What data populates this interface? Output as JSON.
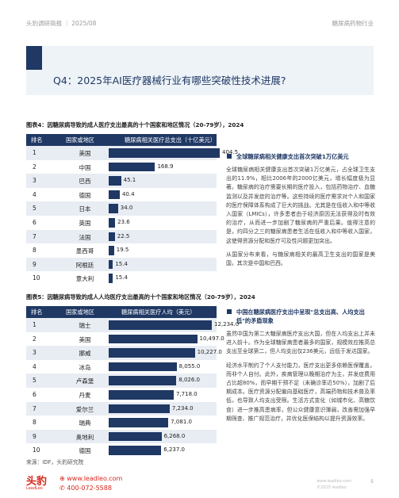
{
  "header": {
    "left": "头豹调研简报 ｜ 2025/08",
    "right": "糖尿病药物行业"
  },
  "title": "Q4：2025年AI医疗器械行业有哪些突破性技术进展?",
  "figure4": {
    "caption": "图表4：因糖尿病导致的成人医疗支出最高的十个国家和地区情况（20-79岁），2024",
    "col_rank": "排名",
    "col_country": "国家或地区",
    "col_value": "糖尿病相关医疗总支出（十亿美元）",
    "rows": [
      {
        "rank": "1",
        "country": "美国",
        "label": "404.5"
      },
      {
        "rank": "2",
        "country": "中国",
        "label": "168.9"
      },
      {
        "rank": "3",
        "country": "巴西",
        "label": "45.1"
      },
      {
        "rank": "4",
        "country": "德国",
        "label": "40.4"
      },
      {
        "rank": "5",
        "country": "日本",
        "label": "34.0"
      },
      {
        "rank": "6",
        "country": "英国",
        "label": "23.6"
      },
      {
        "rank": "7",
        "country": "法国",
        "label": "22.5"
      },
      {
        "rank": "8",
        "country": "墨西哥",
        "label": "19.5"
      },
      {
        "rank": "9",
        "country": "阿根廷",
        "label": "15.4"
      },
      {
        "rank": "10",
        "country": "意大利",
        "label": "15.4"
      }
    ]
  },
  "figure5": {
    "caption": "图表5：因糖尿病导致的成人人均医疗支出最高的十个国家和地区情况（20-79岁），2024",
    "col_rank": "排名",
    "col_country": "国家或地区",
    "col_value": "糖尿病相关医疗人均（美元）",
    "rows": [
      {
        "rank": "1",
        "country": "瑞士",
        "label": "12,234.0"
      },
      {
        "rank": "2",
        "country": "美国",
        "label": "10,497.0"
      },
      {
        "rank": "3",
        "country": "挪威",
        "label": "10,227.0"
      },
      {
        "rank": "4",
        "country": "冰岛",
        "label": "8,055.0"
      },
      {
        "rank": "5",
        "country": "卢森堡",
        "label": "8,026.0"
      },
      {
        "rank": "6",
        "country": "丹麦",
        "label": "7,718.0"
      },
      {
        "rank": "7",
        "country": "爱尔兰",
        "label": "7,234.0"
      },
      {
        "rank": "8",
        "country": "瑞典",
        "label": "7,081.0"
      },
      {
        "rank": "9",
        "country": "奥地利",
        "label": "6,268.0"
      },
      {
        "rank": "10",
        "country": "德国",
        "label": "6,237.0"
      }
    ]
  },
  "chart_data": [
    {
      "type": "bar",
      "title": "图表4：因糖尿病导致的成人医疗支出最高的十个国家和地区情况（20-79岁），2024",
      "ylabel": "糖尿病相关医疗总支出（十亿美元）",
      "categories": [
        "美国",
        "中国",
        "巴西",
        "德国",
        "日本",
        "英国",
        "法国",
        "墨西哥",
        "阿根廷",
        "意大利"
      ],
      "values": [
        404.5,
        168.9,
        45.1,
        40.4,
        34.0,
        23.6,
        22.5,
        19.5,
        15.4,
        15.4
      ],
      "ylim": [
        0,
        404.5
      ]
    },
    {
      "type": "bar",
      "title": "图表5：因糖尿病导致的成人人均医疗支出最高的十个国家和地区情况（20-79岁），2024",
      "ylabel": "糖尿病相关医疗人均（美元）",
      "categories": [
        "瑞士",
        "美国",
        "挪威",
        "冰岛",
        "卢森堡",
        "丹麦",
        "爱尔兰",
        "瑞典",
        "奥地利",
        "德国"
      ],
      "values": [
        12234.0,
        10497.0,
        10227.0,
        8055.0,
        8026.0,
        7718.0,
        7234.0,
        7081.0,
        6268.0,
        6237.0
      ],
      "ylim": [
        0,
        12234.0
      ]
    }
  ],
  "side1": {
    "heading": "全球糖尿病相关健康支出首次突破1万亿美元",
    "p1": "全球糖尿病相关健康支出首次突破1万亿美元，占全球卫生支出的11.9%，相比2006年的2000亿美元，增长幅度极为显著。糖尿病的治疗需要长期的医疗投入，包括药物治疗、血糖监测以及并发症的治疗等。这些持续的医疗需求对个人和国家的医疗保障体系构成了巨大的挑战。尤其是在低收入和中等收入国家（LMICs），许多患者由于经济原因无法获得及时有效的治疗，从而进一步加剧了糖尿病的严重后果。值得注意的是，约四分之三的糖尿病患者生活在低收入和中等收入国家，这使得资源分配和医疗可及性问题更加突出。",
    "p2": "从国家分布来看，与糖尿病相关的最高卫生支出的国家是美国，其次是中国和巴西。"
  },
  "side2": {
    "heading": "中国在糖尿病医疗支出中呈现\"总支出高、人均支出低\"的矛盾现象",
    "p1": "虽然中国为第二大糖尿病医疗支出大国，但在人均支出上并未进入前十。作为全球糖尿病患者最多的国家，规模效应推高总支出至全球第二，但人均支出仅236美元，远低于发达国家。",
    "p2": "经济水平制约了个人支付能力，医疗支出更多依赖医保覆盖，而非个人自付。此外，疾病管理以晚期治疗为主，并发症费用占比超80%，而早期干预不足（未确诊率近50%），加剧了后期成本。医疗资源分配偏向基础医疗，高端药物和技术普及率低，也导致人均支出受限。生活方式变化（如城市化、高糖饮食）进一步推高患病率，但公众健康意识薄弱，改善需加强早期筛查、推广规范治疗，并优化医保结构以提升资源效率。"
  },
  "source": "来源：IDF，头豹研究院",
  "footer": {
    "logo": "头豹",
    "logo_sub": "LeadLeo",
    "website": "www.leadleo.com",
    "phone": "400-072-5588",
    "right_line1": "www.leadleo.com",
    "right_line2": "©2025 leadleo",
    "page": "5"
  },
  "colors": {
    "primary": "#1f3864",
    "shade": "#e8edf3",
    "brand_red": "#d7281e"
  }
}
